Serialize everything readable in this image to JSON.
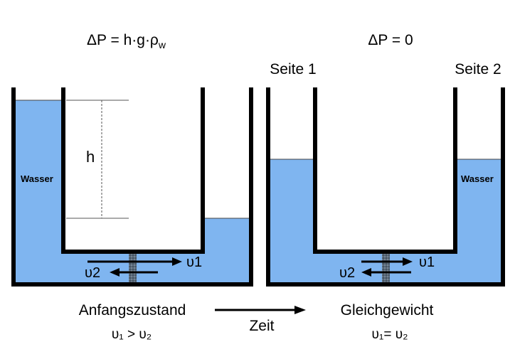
{
  "left": {
    "equation_main": "ΔP = h·g·ρ",
    "equation_sub": "w",
    "water_label": "Wasser",
    "h_label": "h",
    "flux_in": "υ1",
    "flux_out": "υ2",
    "state_label": "Anfangszustand",
    "state_relation": "υ₁ > υ₂"
  },
  "right": {
    "equation": "ΔP = 0",
    "side1_label": "Seite 1",
    "side2_label": "Seite 2",
    "water_label": "Wasser",
    "flux_in": "υ1",
    "flux_out": "υ2",
    "state_label": "Gleichgewicht",
    "state_relation": "υ₁= υ₂"
  },
  "time_label": "Zeit",
  "colors": {
    "water": "#7fb5f0",
    "wall": "#000000",
    "membrane": "#4d5a68"
  }
}
